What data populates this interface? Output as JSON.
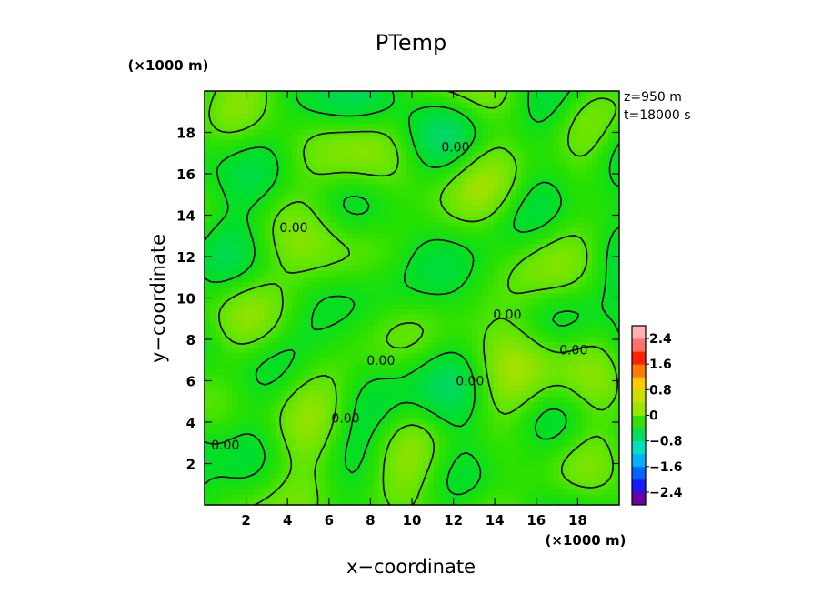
{
  "chart_data": {
    "type": "heatmap",
    "title": "PTemp",
    "xlabel": "x−coordinate",
    "ylabel": "y−coordinate",
    "x_scale_label": "(×1000 m)",
    "y_scale_label": "(×1000 m)",
    "annotations": [
      "z=950 m",
      "t=18000 s"
    ],
    "xlim": [
      0,
      20
    ],
    "ylim": [
      0,
      20
    ],
    "x_ticks": [
      "2",
      "4",
      "6",
      "8",
      "10",
      "12",
      "14",
      "16",
      "18"
    ],
    "y_ticks": [
      "2",
      "4",
      "6",
      "8",
      "10",
      "12",
      "14",
      "16",
      "18"
    ],
    "contour_labels": [
      {
        "text": "0.00",
        "x": 12.1,
        "y": 17.3
      },
      {
        "text": "0.00",
        "x": 4.3,
        "y": 13.4
      },
      {
        "text": "0.00",
        "x": 14.6,
        "y": 9.2
      },
      {
        "text": "0.00",
        "x": 8.5,
        "y": 7.0
      },
      {
        "text": "0.00",
        "x": 17.8,
        "y": 7.5
      },
      {
        "text": "0.00",
        "x": 12.8,
        "y": 6.0
      },
      {
        "text": "0.00",
        "x": 6.8,
        "y": 4.2
      },
      {
        "text": "0.00",
        "x": 1.0,
        "y": 2.9
      }
    ],
    "colorbar": {
      "ticks": [
        "2.4",
        "1.6",
        "0.8",
        "0",
        "−0.8",
        "−1.6",
        "−2.4"
      ],
      "range": [
        -2.8,
        2.8
      ],
      "colors": [
        "#6a00a8",
        "#1a1aff",
        "#0066ff",
        "#00b0ff",
        "#00e0c0",
        "#00dd60",
        "#33e000",
        "#99e600",
        "#ccdd00",
        "#ffcc00",
        "#ff7a00",
        "#ff2200",
        "#ff7070",
        "#ffb0b0"
      ]
    },
    "field_range": [
      -0.8,
      0.8
    ],
    "grid": false
  }
}
